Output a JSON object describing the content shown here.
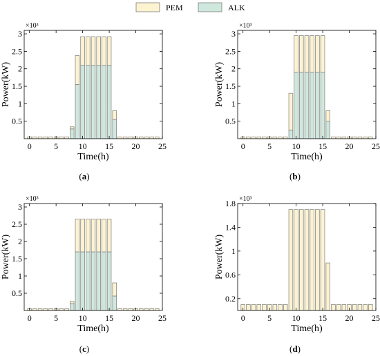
{
  "legend": [
    {
      "label": "PEM",
      "color": "#fdf3d1"
    },
    {
      "label": "ALK",
      "color": "#cfe8dd"
    }
  ],
  "colors": {
    "edge": "#7a7a7a",
    "axis": "#000000"
  },
  "chart_data": [
    {
      "type": "bar",
      "stacked": true,
      "panel_label": "(a)",
      "xlabel": "Time(h)",
      "ylabel": "Power(kW)",
      "exponent_label": "×10³",
      "xlim": [
        -1,
        25
      ],
      "ylim": [
        0,
        3.1
      ],
      "xticks": [
        0,
        5,
        10,
        15,
        20,
        25
      ],
      "yticks": [
        0.5,
        1,
        1.5,
        2,
        2.5,
        3
      ],
      "ytick_labels": [
        "0.5",
        "1",
        "1.5",
        "2",
        "2.5",
        "3"
      ],
      "x": [
        0,
        1,
        2,
        3,
        4,
        5,
        6,
        7,
        8,
        9,
        10,
        11,
        12,
        13,
        14,
        15,
        16,
        17,
        18,
        19,
        20,
        21,
        22,
        23,
        24
      ],
      "series": [
        {
          "name": "ALK",
          "values": [
            0,
            0,
            0,
            0,
            0,
            0,
            0,
            0,
            0.28,
            1.55,
            2.1,
            2.1,
            2.1,
            2.1,
            2.1,
            2.1,
            0.55,
            0,
            0,
            0,
            0,
            0,
            0,
            0,
            0
          ]
        },
        {
          "name": "PEM",
          "values": [
            0.05,
            0.05,
            0.05,
            0.05,
            0.05,
            0.05,
            0.05,
            0.05,
            0.06,
            0.83,
            0.82,
            0.82,
            0.82,
            0.82,
            0.82,
            0.82,
            0.25,
            0.05,
            0.05,
            0.05,
            0.05,
            0.05,
            0.05,
            0.05,
            0.05
          ]
        }
      ]
    },
    {
      "type": "bar",
      "stacked": true,
      "panel_label": "(b)",
      "xlabel": "Time(h)",
      "ylabel": "Power(kW)",
      "exponent_label": "×10³",
      "xlim": [
        -1,
        25
      ],
      "ylim": [
        0,
        3.1
      ],
      "xticks": [
        0,
        5,
        10,
        15,
        20,
        25
      ],
      "yticks": [
        0.5,
        1,
        1.5,
        2,
        2.5,
        3
      ],
      "ytick_labels": [
        "0.5",
        "1",
        "1.5",
        "2",
        "2.5",
        "3"
      ],
      "x": [
        0,
        1,
        2,
        3,
        4,
        5,
        6,
        7,
        8,
        9,
        10,
        11,
        12,
        13,
        14,
        15,
        16,
        17,
        18,
        19,
        20,
        21,
        22,
        23,
        24
      ],
      "series": [
        {
          "name": "ALK",
          "values": [
            0,
            0,
            0,
            0,
            0,
            0,
            0,
            0,
            0,
            0.25,
            1.9,
            1.9,
            1.9,
            1.9,
            1.9,
            1.9,
            0.5,
            0,
            0,
            0,
            0,
            0,
            0,
            0,
            0
          ]
        },
        {
          "name": "PEM",
          "values": [
            0.05,
            0.05,
            0.05,
            0.05,
            0.05,
            0.05,
            0.05,
            0.05,
            0.05,
            1.05,
            1.05,
            1.05,
            1.05,
            1.05,
            1.05,
            1.05,
            0.3,
            0.05,
            0.05,
            0.05,
            0.05,
            0.05,
            0.05,
            0.05,
            0.05
          ]
        }
      ]
    },
    {
      "type": "bar",
      "stacked": true,
      "panel_label": "(c)",
      "xlabel": "Time(h)",
      "ylabel": "Power(kW)",
      "exponent_label": "×10³",
      "xlim": [
        -1,
        25
      ],
      "ylim": [
        0,
        3.1
      ],
      "xticks": [
        0,
        5,
        10,
        15,
        20,
        25
      ],
      "yticks": [
        0.5,
        1,
        1.5,
        2,
        2.5,
        3
      ],
      "ytick_labels": [
        "0.5",
        "1",
        "1.5",
        "2",
        "2.5",
        "3"
      ],
      "x": [
        0,
        1,
        2,
        3,
        4,
        5,
        6,
        7,
        8,
        9,
        10,
        11,
        12,
        13,
        14,
        15,
        16,
        17,
        18,
        19,
        20,
        21,
        22,
        23,
        24
      ],
      "series": [
        {
          "name": "ALK",
          "values": [
            0,
            0,
            0,
            0,
            0,
            0,
            0,
            0,
            0.2,
            1.7,
            1.7,
            1.7,
            1.7,
            1.7,
            1.7,
            1.7,
            0.42,
            0,
            0,
            0,
            0,
            0,
            0,
            0,
            0
          ]
        },
        {
          "name": "PEM",
          "values": [
            0.05,
            0.05,
            0.05,
            0.05,
            0.05,
            0.05,
            0.05,
            0.05,
            0.07,
            0.95,
            0.95,
            0.95,
            0.95,
            0.95,
            0.95,
            0.95,
            0.38,
            0.05,
            0.05,
            0.05,
            0.05,
            0.05,
            0.05,
            0.05,
            0.05
          ]
        }
      ]
    },
    {
      "type": "bar",
      "stacked": true,
      "panel_label": "(d)",
      "xlabel": "Time(h)",
      "ylabel": "Power(kW)",
      "exponent_label": "×10³",
      "xlim": [
        -1,
        25
      ],
      "ylim": [
        0,
        1.8
      ],
      "xticks": [
        0,
        5,
        10,
        15,
        20,
        25
      ],
      "yticks": [
        0.2,
        0.6,
        1,
        1.4,
        1.8
      ],
      "ytick_labels": [
        "0.2",
        "0.6",
        "1",
        "1.4",
        "1.8"
      ],
      "x": [
        0,
        1,
        2,
        3,
        4,
        5,
        6,
        7,
        8,
        9,
        10,
        11,
        12,
        13,
        14,
        15,
        16,
        17,
        18,
        19,
        20,
        21,
        22,
        23,
        24
      ],
      "series": [
        {
          "name": "ALK",
          "values": [
            0,
            0,
            0,
            0,
            0,
            0,
            0,
            0,
            0,
            0,
            0,
            0,
            0,
            0,
            0,
            0,
            0,
            0,
            0,
            0,
            0,
            0,
            0,
            0,
            0
          ]
        },
        {
          "name": "PEM",
          "values": [
            0.1,
            0.1,
            0.1,
            0.1,
            0.1,
            0.1,
            0.1,
            0.1,
            0.1,
            1.7,
            1.7,
            1.7,
            1.7,
            1.7,
            1.7,
            1.7,
            0.8,
            0.1,
            0.1,
            0.1,
            0.1,
            0.1,
            0.1,
            0.1,
            0.1
          ]
        }
      ]
    }
  ]
}
